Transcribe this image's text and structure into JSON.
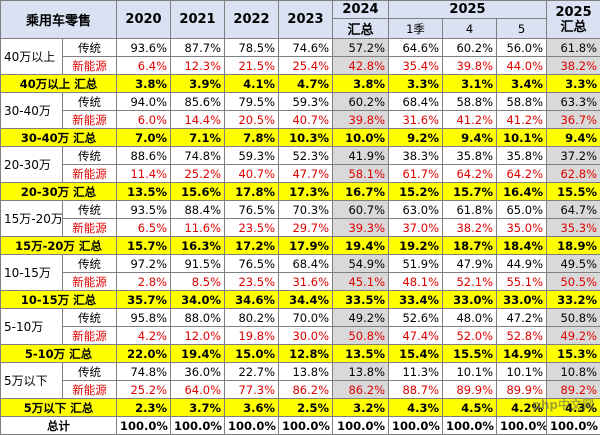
{
  "header": {
    "title": "乘用车零售",
    "years": [
      "2020",
      "2021",
      "2022",
      "2023"
    ],
    "y2024": "2024",
    "y2024_sub": "汇总",
    "y2025": "2025",
    "y2025_cols": [
      "1季",
      "4",
      "5"
    ],
    "y2025_total": "2025 汇总"
  },
  "groups": [
    {
      "segment": "40万以上",
      "rows": [
        {
          "label": "传统",
          "kind": "ice",
          "values": [
            "93.6%",
            "87.7%",
            "78.5%",
            "74.6%",
            "57.2%",
            "64.6%",
            "60.2%",
            "56.0%",
            "61.8%"
          ]
        },
        {
          "label": "新能源",
          "kind": "nev",
          "values": [
            "6.4%",
            "12.3%",
            "21.5%",
            "25.4%",
            "42.8%",
            "35.4%",
            "39.8%",
            "44.0%",
            "38.2%"
          ]
        }
      ],
      "summary": {
        "label": "40万以上 汇总",
        "values": [
          "3.8%",
          "3.9%",
          "4.1%",
          "4.7%",
          "3.8%",
          "3.3%",
          "3.1%",
          "3.4%",
          "3.3%"
        ]
      }
    },
    {
      "segment": "30-40万",
      "rows": [
        {
          "label": "传统",
          "kind": "ice",
          "values": [
            "94.0%",
            "85.6%",
            "79.5%",
            "59.3%",
            "60.2%",
            "68.4%",
            "58.8%",
            "58.8%",
            "63.3%"
          ]
        },
        {
          "label": "新能源",
          "kind": "nev",
          "values": [
            "6.0%",
            "14.4%",
            "20.5%",
            "40.7%",
            "39.8%",
            "31.6%",
            "41.2%",
            "41.2%",
            "36.7%"
          ]
        }
      ],
      "summary": {
        "label": "30-40万 汇总",
        "values": [
          "7.0%",
          "7.1%",
          "7.8%",
          "10.3%",
          "10.0%",
          "9.2%",
          "9.4%",
          "10.1%",
          "9.4%"
        ]
      }
    },
    {
      "segment": "20-30万",
      "rows": [
        {
          "label": "传统",
          "kind": "ice",
          "values": [
            "88.6%",
            "74.8%",
            "59.3%",
            "52.3%",
            "41.9%",
            "38.3%",
            "35.8%",
            "35.8%",
            "37.2%"
          ]
        },
        {
          "label": "新能源",
          "kind": "nev",
          "values": [
            "11.4%",
            "25.2%",
            "40.7%",
            "47.7%",
            "58.1%",
            "61.7%",
            "64.2%",
            "64.2%",
            "62.8%"
          ]
        }
      ],
      "summary": {
        "label": "20-30万 汇总",
        "values": [
          "13.5%",
          "15.6%",
          "17.8%",
          "17.3%",
          "16.7%",
          "15.2%",
          "15.7%",
          "16.4%",
          "15.5%"
        ]
      }
    },
    {
      "segment": "15万-20万",
      "rows": [
        {
          "label": "传统",
          "kind": "ice",
          "values": [
            "93.5%",
            "88.4%",
            "76.5%",
            "70.3%",
            "60.7%",
            "63.0%",
            "61.8%",
            "65.0%",
            "64.7%"
          ]
        },
        {
          "label": "新能源",
          "kind": "nev",
          "values": [
            "6.5%",
            "11.6%",
            "23.5%",
            "29.7%",
            "39.3%",
            "37.0%",
            "38.2%",
            "35.0%",
            "35.3%"
          ]
        }
      ],
      "summary": {
        "label": "15万-20万 汇总",
        "values": [
          "15.7%",
          "16.3%",
          "17.2%",
          "17.9%",
          "19.4%",
          "19.2%",
          "18.7%",
          "18.4%",
          "18.9%"
        ]
      }
    },
    {
      "segment": "10-15万",
      "rows": [
        {
          "label": "传统",
          "kind": "ice",
          "values": [
            "97.2%",
            "91.5%",
            "76.5%",
            "68.4%",
            "54.9%",
            "51.9%",
            "47.9%",
            "44.9%",
            "49.5%"
          ]
        },
        {
          "label": "新能源",
          "kind": "nev",
          "values": [
            "2.8%",
            "8.5%",
            "23.5%",
            "31.6%",
            "45.1%",
            "48.1%",
            "52.1%",
            "55.1%",
            "50.5%"
          ]
        }
      ],
      "summary": {
        "label": "10-15万 汇总",
        "values": [
          "35.7%",
          "34.0%",
          "34.6%",
          "34.4%",
          "33.5%",
          "33.4%",
          "33.0%",
          "33.0%",
          "33.2%"
        ]
      }
    },
    {
      "segment": "5-10万",
      "rows": [
        {
          "label": "传统",
          "kind": "ice",
          "values": [
            "95.8%",
            "88.0%",
            "80.2%",
            "70.0%",
            "49.2%",
            "52.6%",
            "48.0%",
            "47.2%",
            "50.8%"
          ]
        },
        {
          "label": "新能源",
          "kind": "nev",
          "values": [
            "4.2%",
            "12.0%",
            "19.8%",
            "30.0%",
            "50.8%",
            "47.4%",
            "52.0%",
            "52.8%",
            "49.2%"
          ]
        }
      ],
      "summary": {
        "label": "5-10万 汇总",
        "values": [
          "22.0%",
          "19.4%",
          "15.0%",
          "12.8%",
          "13.5%",
          "15.4%",
          "15.5%",
          "14.9%",
          "15.3%"
        ]
      }
    },
    {
      "segment": "5万以下",
      "rows": [
        {
          "label": "传统",
          "kind": "ice",
          "values": [
            "74.8%",
            "36.0%",
            "22.7%",
            "13.8%",
            "13.8%",
            "11.3%",
            "10.1%",
            "10.1%",
            "10.8%"
          ]
        },
        {
          "label": "新能源",
          "kind": "nev",
          "values": [
            "25.2%",
            "64.0%",
            "77.3%",
            "86.2%",
            "86.2%",
            "88.7%",
            "89.9%",
            "89.9%",
            "89.2%"
          ]
        }
      ],
      "summary": {
        "label": "5万以下 汇总",
        "values": [
          "2.3%",
          "3.7%",
          "3.6%",
          "2.5%",
          "3.2%",
          "4.3%",
          "4.5%",
          "4.2%",
          "4.3%"
        ]
      }
    }
  ],
  "total": {
    "label": "总计",
    "values": [
      "100.0%",
      "100.0%",
      "100.0%",
      "100.0%",
      "100.0%",
      "100.0%",
      "100.0%",
      "100.0%",
      "100.0%"
    ]
  },
  "watermark": "php中文网",
  "colors": {
    "header_bg": "#d9e1f2",
    "summary_bg": "#ffff00",
    "nev_text": "#e00000",
    "shade_bg": "#d9d9d9"
  }
}
